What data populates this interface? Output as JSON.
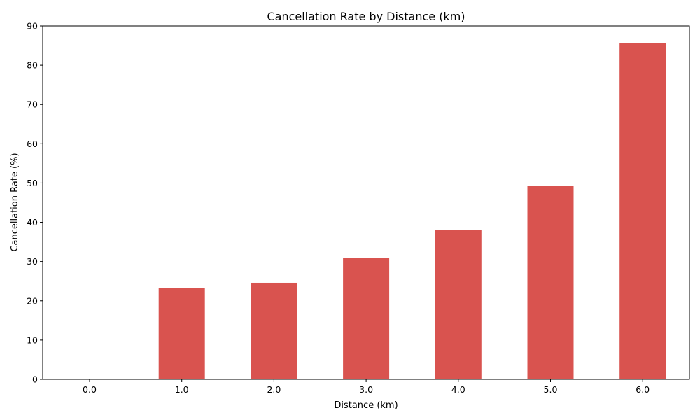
{
  "chart_data": {
    "type": "bar",
    "title": "Cancellation Rate by Distance (km)",
    "xlabel": "Distance (km)",
    "ylabel": "Cancellation Rate (%)",
    "categories": [
      "0.0",
      "1.0",
      "2.0",
      "3.0",
      "4.0",
      "5.0",
      "6.0"
    ],
    "values": [
      0,
      23.3,
      24.6,
      30.9,
      38.1,
      49.2,
      85.7
    ],
    "ylim": [
      0,
      90
    ],
    "yticks": [
      0,
      10,
      20,
      30,
      40,
      50,
      60,
      70,
      80,
      90
    ],
    "bar_color": "#d9534f",
    "grid": false,
    "legend": "none"
  }
}
